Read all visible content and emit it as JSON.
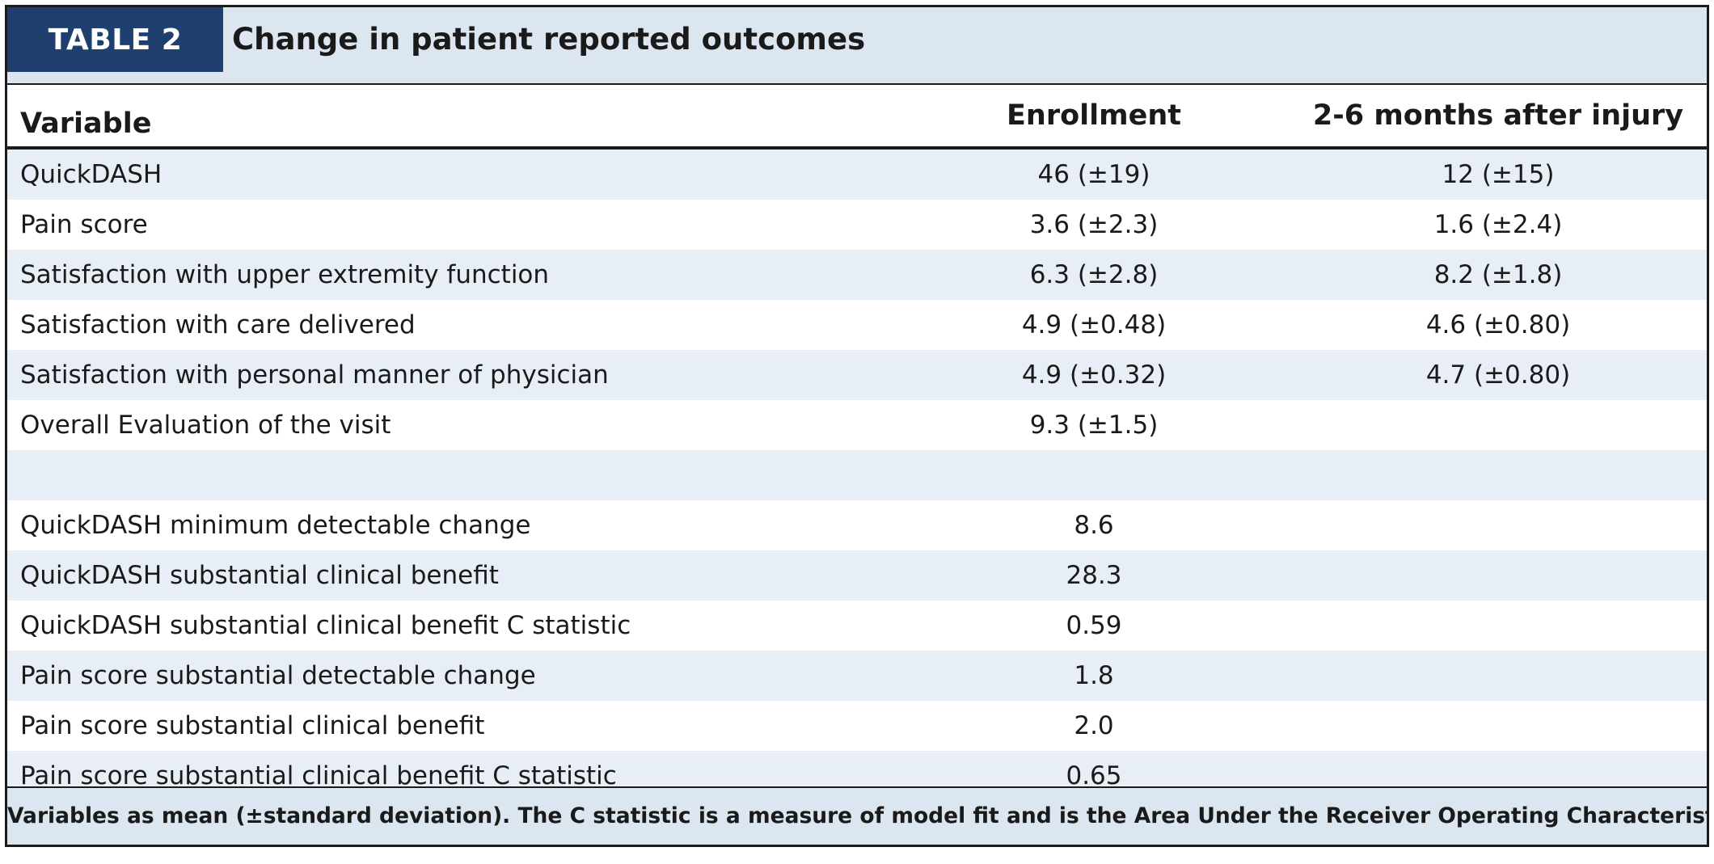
{
  "table": {
    "label": "TABLE 2",
    "title": "Change in patient reported outcomes",
    "columns": [
      "Variable",
      "Enrollment",
      "2-6 months after injury"
    ],
    "rows": [
      {
        "variable": "QuickDASH",
        "enrollment": "46 (±19)",
        "after": "12 (±15)"
      },
      {
        "variable": "Pain score",
        "enrollment": "3.6 (±2.3)",
        "after": "1.6 (±2.4)"
      },
      {
        "variable": "Satisfaction with upper extremity function",
        "enrollment": "6.3 (±2.8)",
        "after": "8.2 (±1.8)"
      },
      {
        "variable": "Satisfaction with care delivered",
        "enrollment": "4.9 (±0.48)",
        "after": "4.6 (±0.80)"
      },
      {
        "variable": "Satisfaction with personal manner of physician",
        "enrollment": "4.9 (±0.32)",
        "after": "4.7 (±0.80)"
      },
      {
        "variable": "Overall Evaluation of the visit",
        "enrollment": "9.3 (±1.5)",
        "after": ""
      },
      {
        "variable": "",
        "enrollment": "",
        "after": ""
      },
      {
        "variable": "QuickDASH minimum detectable change",
        "enrollment": "8.6",
        "after": ""
      },
      {
        "variable": "QuickDASH substantial clinical benefit",
        "enrollment": "28.3",
        "after": ""
      },
      {
        "variable": "QuickDASH substantial clinical benefit C statistic",
        "enrollment": "0.59",
        "after": ""
      },
      {
        "variable": "Pain score substantial detectable change",
        "enrollment": "1.8",
        "after": ""
      },
      {
        "variable": "Pain score substantial clinical benefit",
        "enrollment": "2.0",
        "after": ""
      },
      {
        "variable": "Pain score substantial clinical benefit C statistic",
        "enrollment": "0.65",
        "after": ""
      }
    ],
    "footnote": "Variables as mean (±standard deviation). The C statistic is a measure of model fit and is the Area Under the Receiver Operating Characteristics Curve."
  },
  "colors": {
    "label_background": "#1f3f6e",
    "title_bar_background": "#dce6f1",
    "row_shade": "#e8eef6"
  }
}
